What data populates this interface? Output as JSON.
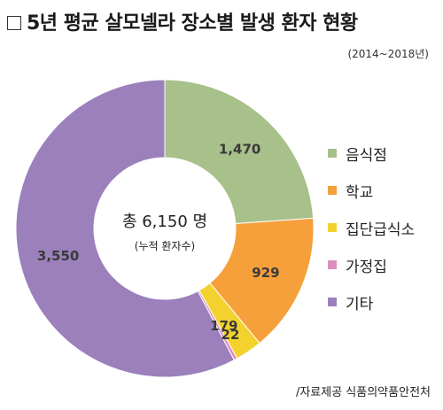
{
  "header": {
    "title": "5년 평균 살모넬라 장소별 발생 환자 현황",
    "period": "(2014~2018년)"
  },
  "center": {
    "total": "총 6,150 명",
    "note": "(누적 환자수)"
  },
  "source": "/자료제공 식품의약품안전처",
  "chart_data": {
    "type": "pie",
    "title": "5년 평균 살모넬라 장소별 발생 환자 현황",
    "subtitle": "(2014~2018년)",
    "total": 6150,
    "legend_position": "right",
    "categories": [
      "음식점",
      "학교",
      "집단급식소",
      "가정집",
      "기타"
    ],
    "values": [
      1470,
      929,
      179,
      22,
      3550
    ],
    "value_labels": [
      "1,470",
      "929",
      "179",
      "22",
      "3,550"
    ],
    "colors": [
      "#a8c08a",
      "#f5a03a",
      "#f4d22e",
      "#dc8fbd",
      "#9b80bc"
    ]
  }
}
